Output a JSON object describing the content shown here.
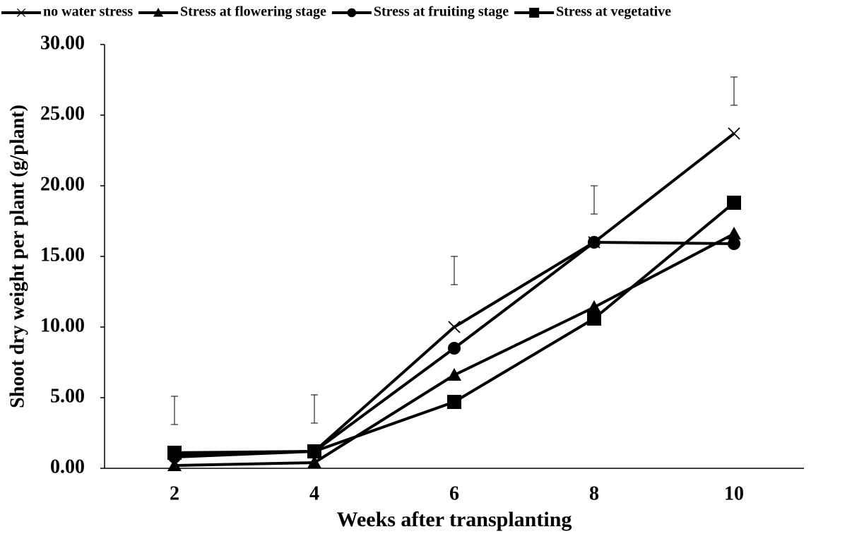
{
  "chart_data": {
    "type": "line",
    "x_label": "Weeks after transplanting",
    "y_label": "Shoot dry weight per plant (g/plant)",
    "categories": [
      "2",
      "4",
      "6",
      "8",
      "10"
    ],
    "series": [
      {
        "name": "no water stress",
        "color": "#000000",
        "marker": "x",
        "values": [
          1.0,
          1.2,
          10.0,
          16.0,
          23.7
        ]
      },
      {
        "name": "Stress at flowering stage",
        "color": "#000000",
        "marker": "triangle",
        "values": [
          0.2,
          0.4,
          6.6,
          11.4,
          16.6
        ]
      },
      {
        "name": "Stress at fruiting stage",
        "color": "#000000",
        "marker": "circle",
        "values": [
          0.8,
          1.2,
          8.5,
          16.0,
          15.9
        ]
      },
      {
        "name": "Stress at vegetative",
        "color": "#000000",
        "marker": "square",
        "values": [
          1.1,
          1.2,
          4.7,
          10.6,
          18.8
        ]
      }
    ],
    "error_bars": {
      "color": "#000000",
      "values": [
        4.1,
        4.2,
        14.0,
        19.0,
        26.7
      ],
      "errors": [
        1.0,
        1.0,
        1.0,
        1.0,
        1.0
      ]
    },
    "ylim": [
      0,
      30
    ],
    "yticks": [
      {
        "value": 0,
        "label": "0.00"
      },
      {
        "value": 5,
        "label": "5.00"
      },
      {
        "value": 10,
        "label": "10.00"
      },
      {
        "value": 15,
        "label": "15.00"
      },
      {
        "value": 20,
        "label": "20.00"
      },
      {
        "value": 25,
        "label": "25.00"
      },
      {
        "value": 30,
        "label": "30.00"
      }
    ],
    "grid": false,
    "legend": "top"
  }
}
